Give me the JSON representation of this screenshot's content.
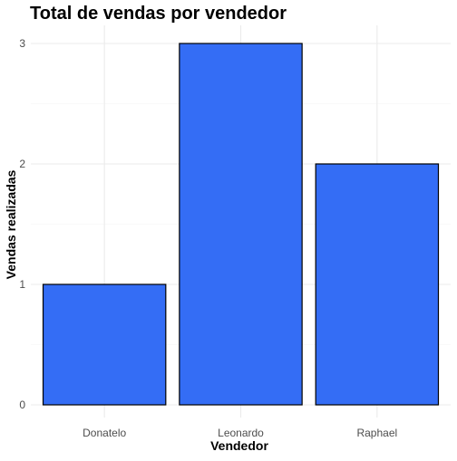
{
  "chart_data": {
    "type": "bar",
    "title": "Total de vendas por vendedor",
    "xlabel": "Vendedor",
    "ylabel": "Vendas realizadas",
    "categories": [
      "Donatelo",
      "Leonardo",
      "Raphael"
    ],
    "values": [
      1,
      3,
      2
    ],
    "ylim": [
      0,
      3.15
    ],
    "yticks": [
      0,
      1,
      2,
      3
    ],
    "grid": true,
    "legend": "none",
    "colors": {
      "bar_fill": "#346df5",
      "bar_outline": "#000000",
      "grid": "#ebebeb"
    }
  }
}
